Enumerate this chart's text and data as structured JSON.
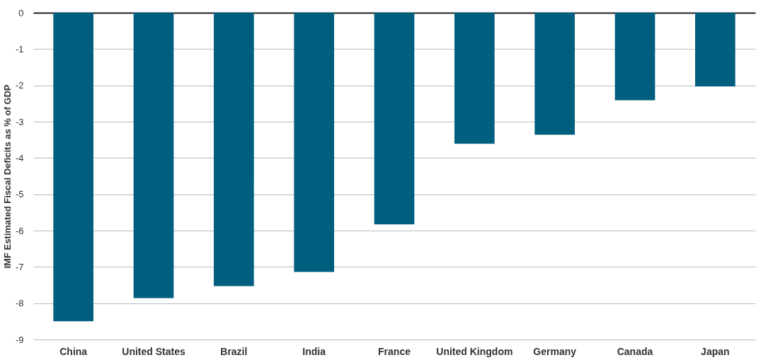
{
  "chart_data": {
    "type": "bar",
    "ylabel": "IMF Estimated Fiscal Deficits as % of GDP",
    "categories": [
      "China",
      "United States",
      "Brazil",
      "India",
      "France",
      "United Kingdom",
      "Germany",
      "Canada",
      "Japan"
    ],
    "values": [
      -8.5,
      -7.86,
      -7.53,
      -7.14,
      -5.83,
      -3.61,
      -3.36,
      -2.41,
      -2.03
    ],
    "color": "#005f7f",
    "ylim": [
      -9,
      0
    ],
    "yticks": [
      -9,
      -8,
      -7,
      -6,
      -5,
      -4,
      -3,
      -2,
      -1,
      0
    ],
    "grid": "y"
  }
}
